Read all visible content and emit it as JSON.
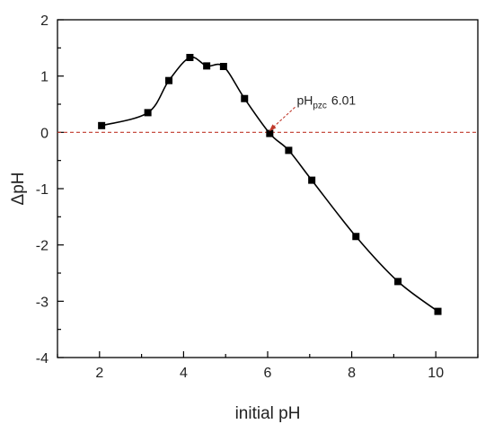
{
  "chart_data": {
    "type": "scatter",
    "xlabel": "initial pH",
    "ylabel": "ΔpH",
    "xlim": [
      1,
      11
    ],
    "ylim": [
      -4,
      2
    ],
    "xticks": [
      2,
      4,
      6,
      8,
      10
    ],
    "yticks": [
      -4,
      -3,
      -2,
      -1,
      0,
      1,
      2
    ],
    "grid": false,
    "series": [
      {
        "x": [
          2.05,
          3.15,
          3.65,
          4.15,
          4.55,
          4.95,
          5.45,
          6.05,
          6.5,
          7.05,
          8.1,
          9.1,
          10.05
        ],
        "y": [
          0.12,
          0.35,
          0.92,
          1.33,
          1.18,
          1.17,
          0.6,
          -0.02,
          -0.32,
          -0.85,
          -1.85,
          -2.65,
          -3.18
        ]
      }
    ],
    "reference_line": {
      "y": 0,
      "color": "#c0392b",
      "style": "dashed"
    },
    "annotation": {
      "text_main": "pH",
      "text_sub": "pzc",
      "text_value": "6.01",
      "point": {
        "x": 6.01,
        "y": 0
      },
      "color": "#c0392b"
    }
  }
}
